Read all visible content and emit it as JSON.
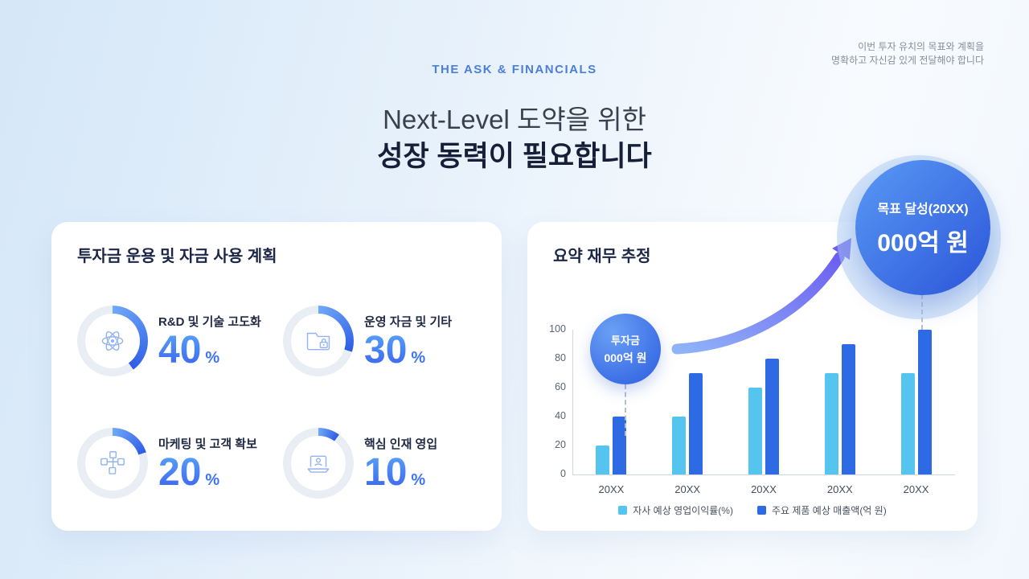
{
  "header": {
    "eyebrow": "THE ASK & FINANCIALS",
    "title_line1": "Next-Level 도약을 위한",
    "title_line2": "성장 동력이 필요합니다",
    "note_line1": "이번 투자 유치의 목표와 계획을",
    "note_line2": "명확하고 자신감 있게 전달해야 합니다"
  },
  "allocation": {
    "title": "투자금 운용 및 자금 사용 계획",
    "items": [
      {
        "label": "R&D 및 기술 고도화",
        "value": 40,
        "percent_text": "40",
        "unit": "%",
        "icon": "atom-icon"
      },
      {
        "label": "운영 자금 및 기타",
        "value": 30,
        "percent_text": "30",
        "unit": "%",
        "icon": "folder-lock-icon"
      },
      {
        "label": "마케팅 및 고객 확보",
        "value": 20,
        "percent_text": "20",
        "unit": "%",
        "icon": "org-network-icon"
      },
      {
        "label": "핵심 인재 영입",
        "value": 10,
        "percent_text": "10",
        "unit": "%",
        "icon": "laptop-person-icon"
      }
    ]
  },
  "financial": {
    "title": "요약 재무 추정",
    "bubble": {
      "line1": "투자금",
      "line2": "000억 원"
    },
    "goal": {
      "line1": "목표 달성(20XX)",
      "line2": "000억 원"
    }
  },
  "chart_data": [
    {
      "type": "pie",
      "title": "투자금 운용 및 자금 사용 계획",
      "labels": [
        "R&D 및 기술 고도화",
        "운영 자금 및 기타",
        "마케팅 및 고객 확보",
        "핵심 인재 영입"
      ],
      "values": [
        40,
        30,
        20,
        10
      ],
      "unit": "%"
    },
    {
      "type": "bar",
      "title": "요약 재무 추정",
      "categories": [
        "20XX",
        "20XX",
        "20XX",
        "20XX",
        "20XX"
      ],
      "series": [
        {
          "name": "자사 예상 영업이익률(%)",
          "color": "#55c4ee",
          "values": [
            20,
            40,
            60,
            70,
            70
          ]
        },
        {
          "name": "주요 제품 예상 매출액(억 원)",
          "color": "#2e6ae3",
          "values": [
            40,
            70,
            80,
            90,
            100
          ]
        }
      ],
      "ylim": [
        0,
        100
      ],
      "yticks": [
        0,
        20,
        40,
        60,
        80,
        100
      ],
      "grid": false,
      "legend_position": "bottom"
    }
  ],
  "colors": {
    "accent": "#3f74f0",
    "eyebrow": "#4b7fd9",
    "light_bar": "#55c4ee",
    "dark_bar": "#2e6ae3",
    "donut_track": "#e9edf4",
    "arc_start": "#6fa9f7",
    "arc_end": "#2f5ce6",
    "arrow_start": "#8fb3f8",
    "arrow_end": "#6d5ff1"
  }
}
